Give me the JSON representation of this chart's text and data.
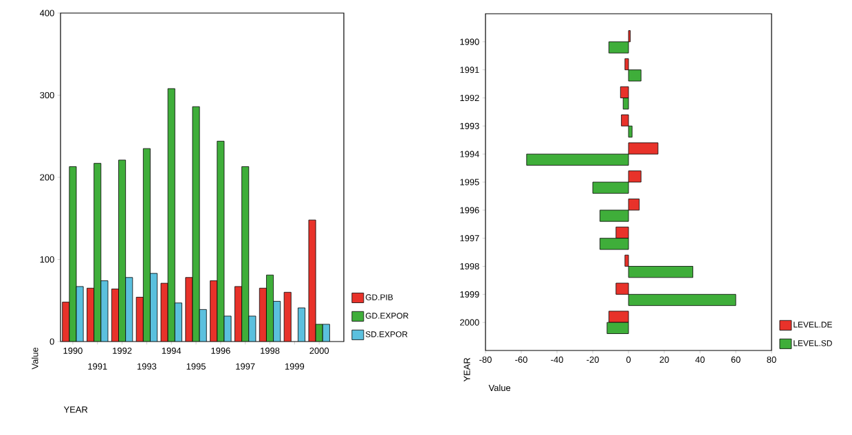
{
  "chart_data": [
    {
      "type": "bar",
      "xlabel": "YEAR",
      "ylabel": "Value",
      "categories": [
        "1990",
        "1991",
        "1992",
        "1993",
        "1994",
        "1995",
        "1996",
        "1997",
        "1998",
        "1999",
        "2000"
      ],
      "series": [
        {
          "name": "GD.PIB",
          "color": "#e8322a",
          "values": [
            48,
            65,
            64,
            54,
            71,
            78,
            74,
            67,
            65,
            60,
            148
          ]
        },
        {
          "name": "GD.EXPOR",
          "color": "#3fae3a",
          "values": [
            213,
            217,
            221,
            235,
            308,
            286,
            244,
            213,
            81,
            null,
            21
          ]
        },
        {
          "name": "SD.EXPOR",
          "color": "#5bc0de",
          "values": [
            67,
            74,
            78,
            83,
            47,
            39,
            31,
            31,
            49,
            41,
            21
          ]
        }
      ],
      "ylim": [
        0,
        400
      ],
      "yticks": [
        0,
        100,
        200,
        300,
        400
      ],
      "grid": false,
      "legend": "bottom right"
    },
    {
      "type": "bar",
      "orientation": "horizontal",
      "xlabel": "Value",
      "ylabel": "YEAR",
      "categories": [
        "1990",
        "1991",
        "1992",
        "1993",
        "1994",
        "1995",
        "1996",
        "1997",
        "1998",
        "1999",
        "2000"
      ],
      "series": [
        {
          "name": "LEVEL.DE",
          "color": "#e8322a",
          "values": [
            1,
            -2,
            -4.5,
            -4,
            16.5,
            7,
            6,
            -7,
            -2,
            -7,
            -11
          ]
        },
        {
          "name": "LEVEL.SD",
          "color": "#3fae3a",
          "values": [
            -11,
            7,
            -3,
            2,
            -57,
            -20,
            -16,
            -16,
            36,
            60,
            -12
          ]
        }
      ],
      "xlim": [
        -80,
        80
      ],
      "xticks": [
        -80,
        -60,
        -40,
        -20,
        0,
        20,
        40,
        60,
        80
      ],
      "grid": false,
      "legend": "bottom right"
    }
  ]
}
